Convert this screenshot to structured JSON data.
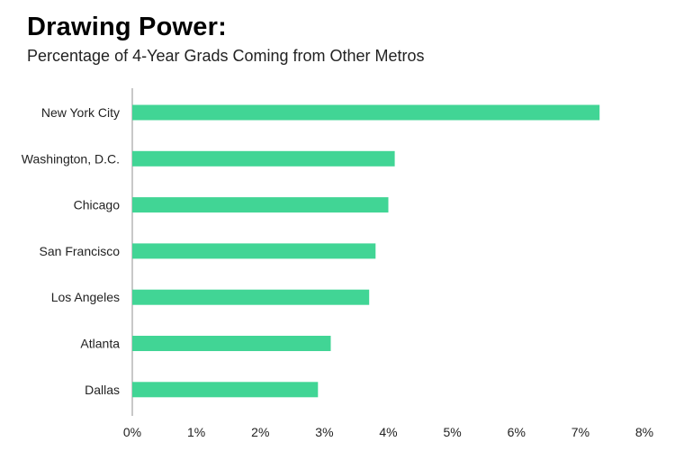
{
  "header": {
    "title": "Drawing Power:",
    "subtitle": "Percentage of 4-Year Grads Coming from Other Metros"
  },
  "colors": {
    "bar": "#41d595",
    "axis": "#c8c8c8"
  },
  "chart_data": {
    "type": "bar",
    "orientation": "horizontal",
    "title": "Drawing Power:",
    "subtitle": "Percentage of 4-Year Grads Coming from Other Metros",
    "xlabel": "",
    "ylabel": "",
    "categories": [
      "New York City",
      "Washington, D.C.",
      "Chicago",
      "San Francisco",
      "Los Angeles",
      "Atlanta",
      "Dallas"
    ],
    "values": [
      7.3,
      4.1,
      4.0,
      3.8,
      3.7,
      3.1,
      2.9
    ],
    "value_unit": "%",
    "xlim": [
      0,
      8
    ],
    "xticks": [
      0,
      1,
      2,
      3,
      4,
      5,
      6,
      7,
      8
    ],
    "xtick_labels": [
      "0%",
      "1%",
      "2%",
      "3%",
      "4%",
      "5%",
      "6%",
      "7%",
      "8%"
    ],
    "grid": false,
    "legend": "none"
  }
}
